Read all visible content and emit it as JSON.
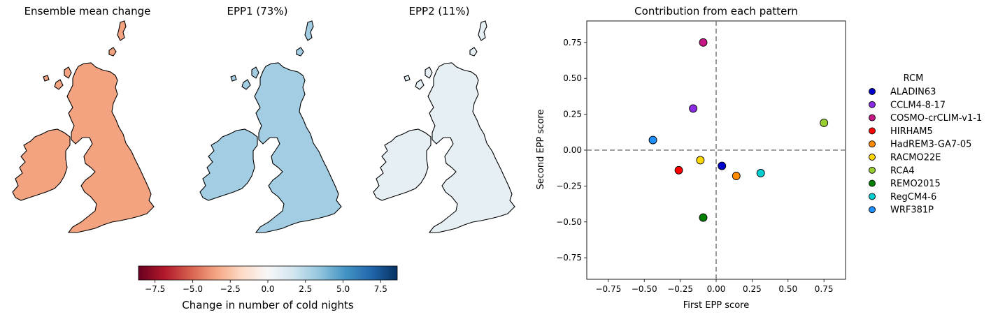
{
  "maps": {
    "panels": [
      {
        "title": "Ensemble mean change",
        "value": -3.5
      },
      {
        "title": "EPP1 (73%)",
        "value": 3.0
      },
      {
        "title": "EPP2 (11%)",
        "value": 0.8
      }
    ],
    "colorbar": {
      "label": "Change in number of cold nights",
      "ticks": [
        "−7.5",
        "−5.0",
        "−2.5",
        "0.0",
        "2.5",
        "5.0",
        "7.5"
      ],
      "tick_values": [
        -7.5,
        -5.0,
        -2.5,
        0.0,
        2.5,
        5.0,
        7.5
      ],
      "range": [
        -8.6,
        8.6
      ],
      "colormap": "RdBu",
      "colors": [
        "#67001f",
        "#b2182b",
        "#d6604d",
        "#f4a582",
        "#fddbc7",
        "#f7f7f7",
        "#d1e5f0",
        "#92c5de",
        "#4393c3",
        "#2166ac",
        "#053061"
      ]
    }
  },
  "chart_data": {
    "type": "scatter",
    "title": "Contribution from each pattern",
    "xlabel": "First EPP score",
    "ylabel": "Second EPP score",
    "xlim": [
      -0.9,
      0.9
    ],
    "ylim": [
      -0.9,
      0.9
    ],
    "xticks": [
      "−0.75",
      "−0.50",
      "−0.25",
      "0.00",
      "0.25",
      "0.50",
      "0.75"
    ],
    "yticks": [
      "−0.75",
      "−0.50",
      "−0.25",
      "0.00",
      "0.25",
      "0.50",
      "0.75"
    ],
    "tick_values": [
      -0.75,
      -0.5,
      -0.25,
      0.0,
      0.25,
      0.5,
      0.75
    ],
    "reference_lines": {
      "x": 0,
      "y": 0,
      "style": "dashed",
      "color": "#808080"
    },
    "legend": {
      "title": "RCM",
      "placement": "outside-right"
    },
    "points": [
      {
        "name": "ALADIN63",
        "x": 0.04,
        "y": -0.11,
        "color": "#0000cd"
      },
      {
        "name": "CCLM4-8-17",
        "x": -0.16,
        "y": 0.29,
        "color": "#8a2be2"
      },
      {
        "name": "COSMO-crCLIM-v1-1",
        "x": -0.09,
        "y": 0.75,
        "color": "#c71585"
      },
      {
        "name": "HIRHAM5",
        "x": -0.26,
        "y": -0.14,
        "color": "#ff0000"
      },
      {
        "name": "HadREM3-GA7-05",
        "x": 0.14,
        "y": -0.18,
        "color": "#ff8c00"
      },
      {
        "name": "RACMO22E",
        "x": -0.11,
        "y": -0.07,
        "color": "#ffd700"
      },
      {
        "name": "RCA4",
        "x": 0.75,
        "y": 0.19,
        "color": "#9acd32"
      },
      {
        "name": "REMO2015",
        "x": -0.09,
        "y": -0.47,
        "color": "#008000"
      },
      {
        "name": "RegCM4-6",
        "x": 0.31,
        "y": -0.16,
        "color": "#00ced1"
      },
      {
        "name": "WRF381P",
        "x": -0.44,
        "y": 0.07,
        "color": "#1e90ff"
      }
    ]
  }
}
